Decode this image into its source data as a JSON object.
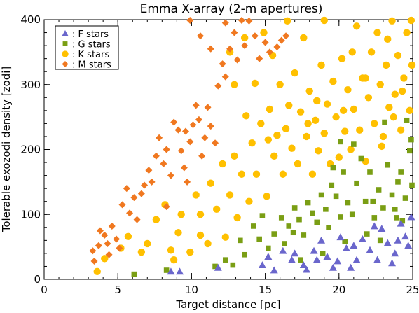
{
  "chart_data": {
    "type": "scatter",
    "title": "Emma X-array (2-m apertures)",
    "xlabel": "Target distance [pc]",
    "ylabel": "Tolerable exozodi density [zodi]",
    "xlim": [
      0,
      25
    ],
    "ylim": [
      0,
      400
    ],
    "x_ticks": [
      0,
      5,
      10,
      15,
      20,
      25
    ],
    "y_ticks": [
      0,
      100,
      200,
      300,
      400
    ],
    "x_minor_step": 1,
    "y_minor_step": 20,
    "grid": false,
    "legend_position": "top-left",
    "series": [
      {
        "name": "F stars",
        "legend_label": ": F stars",
        "marker": "triangle",
        "color": "#6a66cc",
        "points": [
          [
            8.6,
            12
          ],
          [
            9.2,
            12
          ],
          [
            11.8,
            18
          ],
          [
            14.8,
            22
          ],
          [
            15.2,
            35
          ],
          [
            15.6,
            14
          ],
          [
            16.8,
            30
          ],
          [
            17.0,
            40
          ],
          [
            17.6,
            22
          ],
          [
            18.3,
            44
          ],
          [
            18.8,
            60
          ],
          [
            19.2,
            35
          ],
          [
            19.6,
            18
          ],
          [
            20.1,
            65
          ],
          [
            20.5,
            48
          ],
          [
            21.2,
            30
          ],
          [
            21.6,
            62
          ],
          [
            22.1,
            45
          ],
          [
            22.6,
            30
          ],
          [
            22.9,
            78
          ],
          [
            23.3,
            56
          ],
          [
            23.8,
            40
          ],
          [
            24.2,
            86
          ],
          [
            24.7,
            52
          ],
          [
            24.9,
            96
          ],
          [
            24.5,
            66
          ],
          [
            17.8,
            15
          ],
          [
            18.5,
            30
          ],
          [
            19.9,
            28
          ],
          [
            21.0,
            52
          ],
          [
            22.4,
            82
          ],
          [
            23.6,
            25
          ],
          [
            16.2,
            44
          ],
          [
            20.8,
            18
          ],
          [
            24.0,
            60
          ]
        ]
      },
      {
        "name": "G stars",
        "legend_label": ": G stars",
        "marker": "square",
        "color": "#7a9e14",
        "points": [
          [
            6.1,
            8
          ],
          [
            8.3,
            14
          ],
          [
            11.6,
            20
          ],
          [
            12.3,
            30
          ],
          [
            12.8,
            22
          ],
          [
            13.3,
            60
          ],
          [
            13.6,
            38
          ],
          [
            14.2,
            82
          ],
          [
            14.6,
            62
          ],
          [
            15.2,
            48
          ],
          [
            15.6,
            70
          ],
          [
            16.1,
            95
          ],
          [
            16.3,
            55
          ],
          [
            16.6,
            82
          ],
          [
            17.0,
            110
          ],
          [
            17.3,
            92
          ],
          [
            17.6,
            68
          ],
          [
            17.9,
            118
          ],
          [
            18.2,
            102
          ],
          [
            18.5,
            88
          ],
          [
            18.8,
            130
          ],
          [
            19.1,
            108
          ],
          [
            19.3,
            80
          ],
          [
            19.5,
            145
          ],
          [
            19.8,
            128
          ],
          [
            20.1,
            96
          ],
          [
            20.3,
            165
          ],
          [
            20.6,
            118
          ],
          [
            20.9,
            100
          ],
          [
            21.2,
            148
          ],
          [
            21.5,
            186
          ],
          [
            21.8,
            120
          ],
          [
            22.1,
            165
          ],
          [
            22.4,
            95
          ],
          [
            22.7,
            138
          ],
          [
            23.0,
            110
          ],
          [
            23.3,
            176
          ],
          [
            23.6,
            130
          ],
          [
            23.9,
            95
          ],
          [
            24.2,
            165
          ],
          [
            24.5,
            125
          ],
          [
            24.8,
            198
          ],
          [
            25.0,
            145
          ],
          [
            24.6,
            245
          ],
          [
            24.9,
            215
          ],
          [
            20.1,
            212
          ],
          [
            21.0,
            208
          ],
          [
            23.1,
            242
          ],
          [
            18.9,
            40
          ],
          [
            21.9,
            70
          ],
          [
            24.3,
            90
          ],
          [
            17.4,
            30
          ],
          [
            22.8,
            60
          ],
          [
            14.8,
            98
          ],
          [
            20.4,
            58
          ],
          [
            23.8,
            108
          ],
          [
            19.6,
            172
          ],
          [
            22.3,
            120
          ],
          [
            24.0,
            150
          ],
          [
            16.9,
            72
          ]
        ]
      },
      {
        "name": "K stars",
        "legend_label": ": K stars",
        "marker": "circle",
        "color": "#ffc000",
        "points": [
          [
            3.6,
            12
          ],
          [
            4.1,
            32
          ],
          [
            5.2,
            48
          ],
          [
            5.7,
            66
          ],
          [
            6.6,
            42
          ],
          [
            7.0,
            55
          ],
          [
            7.6,
            92
          ],
          [
            8.2,
            115
          ],
          [
            8.6,
            45
          ],
          [
            9.1,
            72
          ],
          [
            9.3,
            100
          ],
          [
            9.9,
            42
          ],
          [
            10.3,
            130
          ],
          [
            10.6,
            68
          ],
          [
            11.1,
            55
          ],
          [
            11.3,
            148
          ],
          [
            11.7,
            108
          ],
          [
            12.1,
            178
          ],
          [
            12.3,
            65
          ],
          [
            12.6,
            130
          ],
          [
            12.9,
            190
          ],
          [
            13.1,
            95
          ],
          [
            13.4,
            162
          ],
          [
            13.7,
            252
          ],
          [
            13.9,
            120
          ],
          [
            14.1,
            210
          ],
          [
            14.3,
            302
          ],
          [
            14.4,
            162
          ],
          [
            14.7,
            240
          ],
          [
            14.9,
            380
          ],
          [
            15.1,
            128
          ],
          [
            15.3,
            262
          ],
          [
            15.5,
            345
          ],
          [
            15.6,
            190
          ],
          [
            15.8,
            222
          ],
          [
            16.0,
            300
          ],
          [
            16.2,
            162
          ],
          [
            16.4,
            232
          ],
          [
            16.6,
            268
          ],
          [
            16.8,
            202
          ],
          [
            17.0,
            318
          ],
          [
            17.2,
            178
          ],
          [
            17.4,
            258
          ],
          [
            17.6,
            372
          ],
          [
            17.8,
            220
          ],
          [
            18.0,
            290
          ],
          [
            18.2,
            162
          ],
          [
            18.4,
            245
          ],
          [
            18.6,
            198
          ],
          [
            18.8,
            330
          ],
          [
            19.0,
            225
          ],
          [
            19.2,
            270
          ],
          [
            19.4,
            178
          ],
          [
            19.6,
            305
          ],
          [
            19.8,
            250
          ],
          [
            20.0,
            188
          ],
          [
            20.2,
            340
          ],
          [
            20.4,
            228
          ],
          [
            20.6,
            292
          ],
          [
            20.8,
            200
          ],
          [
            21.0,
            262
          ],
          [
            21.2,
            390
          ],
          [
            21.4,
            230
          ],
          [
            21.6,
            310
          ],
          [
            21.8,
            182
          ],
          [
            22.0,
            280
          ],
          [
            22.2,
            350
          ],
          [
            22.4,
            240
          ],
          [
            22.6,
            380
          ],
          [
            22.8,
            300
          ],
          [
            23.0,
            220
          ],
          [
            23.2,
            330
          ],
          [
            23.4,
            265
          ],
          [
            23.6,
            398
          ],
          [
            23.8,
            285
          ],
          [
            24.0,
            345
          ],
          [
            24.2,
            230
          ],
          [
            24.4,
            310
          ],
          [
            24.6,
            380
          ],
          [
            24.8,
            260
          ],
          [
            25.0,
            330
          ],
          [
            24.9,
            400
          ],
          [
            16.5,
            398
          ],
          [
            13.6,
            372
          ],
          [
            12.6,
            350
          ],
          [
            12.9,
            300
          ],
          [
            10.6,
            100
          ],
          [
            8.8,
            30
          ],
          [
            19.0,
            400
          ],
          [
            23.3,
            370
          ],
          [
            20.3,
            260
          ],
          [
            17.9,
            240
          ],
          [
            15.2,
            215
          ],
          [
            22.9,
            205
          ],
          [
            18.5,
            275
          ],
          [
            21.8,
            310
          ],
          [
            24.3,
            290
          ],
          [
            23.7,
            250
          ],
          [
            20.9,
            350
          ]
        ]
      },
      {
        "name": "M stars",
        "legend_label": ": M stars",
        "marker": "diamond",
        "color": "#f07820",
        "points": [
          [
            3.3,
            44
          ],
          [
            3.4,
            28
          ],
          [
            3.7,
            52
          ],
          [
            3.8,
            75
          ],
          [
            4.1,
            68
          ],
          [
            4.3,
            55
          ],
          [
            4.4,
            38
          ],
          [
            4.6,
            82
          ],
          [
            4.9,
            62
          ],
          [
            5.1,
            48
          ],
          [
            5.3,
            115
          ],
          [
            5.6,
            140
          ],
          [
            5.8,
            102
          ],
          [
            6.1,
            126
          ],
          [
            6.3,
            92
          ],
          [
            6.6,
            132
          ],
          [
            6.8,
            145
          ],
          [
            7.1,
            168
          ],
          [
            7.3,
            150
          ],
          [
            7.6,
            190
          ],
          [
            7.8,
            218
          ],
          [
            8.1,
            178
          ],
          [
            8.3,
            200
          ],
          [
            8.6,
            160
          ],
          [
            8.8,
            242
          ],
          [
            9.1,
            230
          ],
          [
            9.3,
            198
          ],
          [
            9.5,
            172
          ],
          [
            9.7,
            150
          ],
          [
            9.9,
            212
          ],
          [
            10.1,
            238
          ],
          [
            10.3,
            268
          ],
          [
            10.5,
            246
          ],
          [
            10.7,
            190
          ],
          [
            10.9,
            218
          ],
          [
            11.1,
            265
          ],
          [
            11.3,
            236
          ],
          [
            11.6,
            210
          ],
          [
            11.8,
            298
          ],
          [
            12.1,
            332
          ],
          [
            12.3,
            312
          ],
          [
            12.6,
            355
          ],
          [
            12.9,
            380
          ],
          [
            13.1,
            338
          ],
          [
            13.4,
            400
          ],
          [
            13.6,
            360
          ],
          [
            13.9,
            398
          ],
          [
            14.3,
            375
          ],
          [
            14.6,
            340
          ],
          [
            15.0,
            365
          ],
          [
            15.3,
            350
          ],
          [
            15.8,
            358
          ],
          [
            16.1,
            368
          ],
          [
            16.4,
            375
          ],
          [
            9.9,
            400
          ],
          [
            10.6,
            375
          ],
          [
            11.3,
            355
          ],
          [
            12.3,
            395
          ],
          [
            8.3,
            112
          ],
          [
            9.6,
            228
          ]
        ]
      }
    ]
  }
}
